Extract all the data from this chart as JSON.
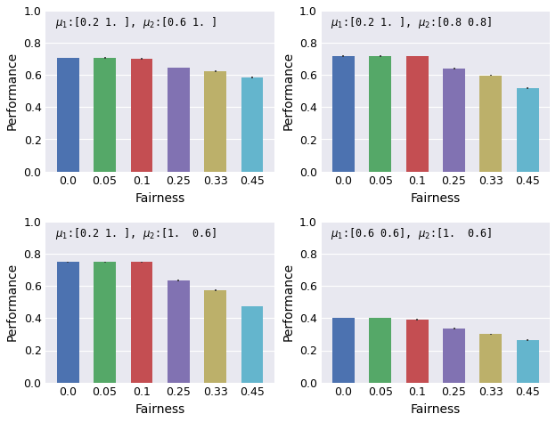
{
  "subplots": [
    {
      "title": "$\\mu_1$:[0.2 1. ], $\\mu_2$:[0.6 1. ]",
      "values": [
        0.705,
        0.705,
        0.7,
        0.648,
        0.624,
        0.585
      ],
      "errors": [
        0.0,
        0.005,
        0.005,
        0.0,
        0.005,
        0.005
      ]
    },
    {
      "title": "$\\mu_1$:[0.2 1. ], $\\mu_2$:[0.8 0.8]",
      "values": [
        0.718,
        0.718,
        0.718,
        0.64,
        0.598,
        0.52
      ],
      "errors": [
        0.005,
        0.005,
        0.0,
        0.005,
        0.005,
        0.005
      ]
    },
    {
      "title": "$\\mu_1$:[0.2 1. ], $\\mu_2$:[1.  0.6]",
      "values": [
        0.748,
        0.748,
        0.748,
        0.635,
        0.572,
        0.473
      ],
      "errors": [
        0.005,
        0.005,
        0.005,
        0.005,
        0.005,
        0.0
      ]
    },
    {
      "title": "$\\mu_1$:[0.6 0.6], $\\mu_2$:[1.  0.6]",
      "values": [
        0.4,
        0.4,
        0.39,
        0.335,
        0.3,
        0.265
      ],
      "errors": [
        0.0,
        0.0,
        0.005,
        0.005,
        0.005,
        0.005
      ]
    }
  ],
  "categories": [
    "0.0",
    "0.05",
    "0.1",
    "0.25",
    "0.33",
    "0.45"
  ],
  "bar_colors": [
    "#4C72B0",
    "#55A868",
    "#C44E52",
    "#8172B2",
    "#BCB06A",
    "#64B5CD"
  ],
  "xlabel": "Fairness",
  "ylabel": "Performance",
  "ylim": [
    0.0,
    1.0
  ],
  "yticks": [
    0.0,
    0.2,
    0.4,
    0.6,
    0.8,
    1.0
  ],
  "bg_color": "#E8E8F0",
  "title_fontsize": 8.5,
  "label_fontsize": 10,
  "tick_fontsize": 9
}
